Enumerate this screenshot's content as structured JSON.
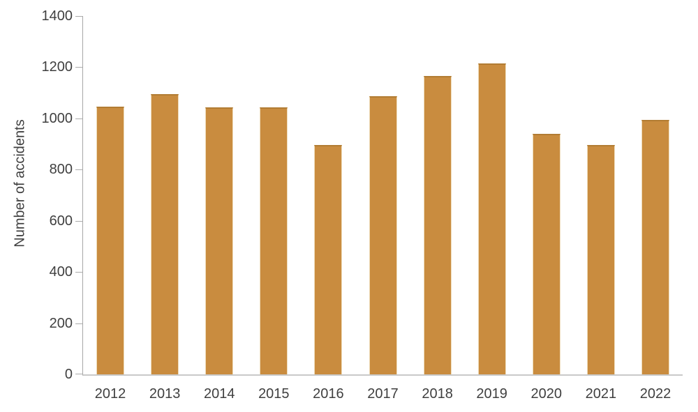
{
  "chart_data": {
    "type": "bar",
    "title": "",
    "xlabel": "",
    "ylabel": "Number of accidents",
    "categories": [
      "2012",
      "2013",
      "2014",
      "2015",
      "2016",
      "2017",
      "2018",
      "2019",
      "2020",
      "2021",
      "2022"
    ],
    "values": [
      1047,
      1095,
      1043,
      1043,
      896,
      1087,
      1167,
      1215,
      941,
      897,
      995
    ],
    "ylim": [
      0,
      1400
    ],
    "yticks": [
      0,
      200,
      400,
      600,
      800,
      1000,
      1200,
      1400
    ],
    "grid": false,
    "legend": false,
    "bar_color": "#C98C3F",
    "bar_top_edge_color": "#B27C33",
    "y_axis_line_color": "#A6A6A6",
    "x_axis_line_color": "#C9C9C9",
    "tick_color": "#ABABAB",
    "text_color": "#3F3F3F",
    "background_color": "#FFFFFF"
  }
}
